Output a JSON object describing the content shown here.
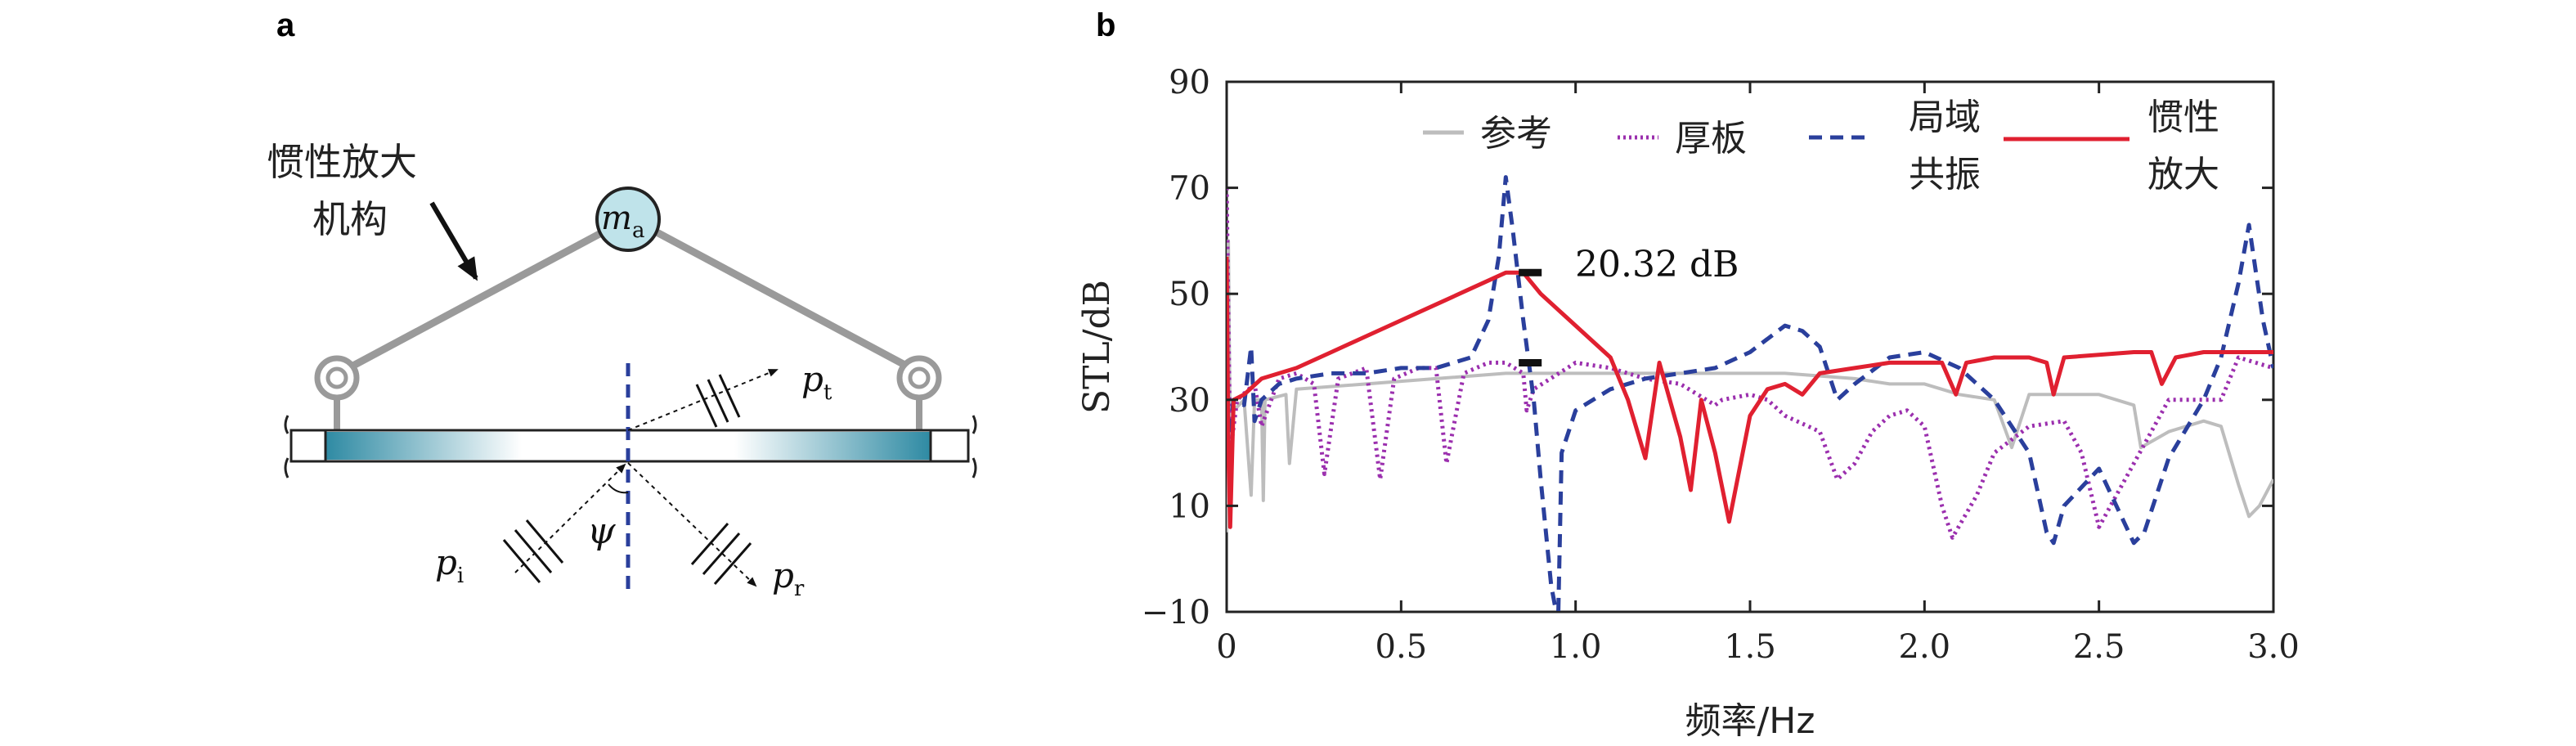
{
  "panels": {
    "a": "a",
    "b": "b"
  },
  "schematic": {
    "mechanism_label_line1": "惯性放大",
    "mechanism_label_line2": "机构",
    "mass_label": "m",
    "mass_sub": "a",
    "p_t": "p",
    "p_t_sub": "t",
    "p_i": "p",
    "p_i_sub": "i",
    "p_r": "p",
    "p_r_sub": "r",
    "psi": "ψ",
    "colors": {
      "plate": "#2e8aa3",
      "mass": "#bfe3ea",
      "bar": "#9a9a9a",
      "dashed": "#2a3f9c"
    }
  },
  "chart_data": {
    "type": "line",
    "xlabel": "频率/Hz",
    "ylabel": "STL/dB",
    "xlim": [
      0,
      3.0
    ],
    "ylim": [
      -10,
      90
    ],
    "xticks": [
      "0",
      "0.5",
      "1.0",
      "1.5",
      "2.0",
      "2.5",
      "3.0"
    ],
    "yticks": [
      "−10",
      "10",
      "30",
      "50",
      "70",
      "90"
    ],
    "xtick_values": [
      0,
      0.5,
      1.0,
      1.5,
      2.0,
      2.5,
      3.0
    ],
    "ytick_values": [
      -10,
      10,
      30,
      50,
      70,
      90
    ],
    "grid": false,
    "legend": {
      "placement": "top",
      "entries": [
        {
          "key": "ref",
          "line1": "参考",
          "line2": ""
        },
        {
          "key": "thick",
          "line1": "厚板",
          "line2": ""
        },
        {
          "key": "local",
          "line1": "局域",
          "line2": "共振"
        },
        {
          "key": "inertial",
          "line1": "惯性",
          "line2": "放大"
        }
      ]
    },
    "annotation": {
      "text": "20.32 dB",
      "x": 0.87,
      "y_top": 54,
      "y_bottom": 37
    },
    "series": [
      {
        "key": "ref",
        "color": "#bdbdbd",
        "dash": "solid",
        "points": [
          [
            0,
            5
          ],
          [
            0.005,
            60
          ],
          [
            0.01,
            22
          ],
          [
            0.02,
            28
          ],
          [
            0.05,
            30
          ],
          [
            0.07,
            12
          ],
          [
            0.08,
            30
          ],
          [
            0.1,
            30
          ],
          [
            0.105,
            11
          ],
          [
            0.11,
            30
          ],
          [
            0.17,
            31
          ],
          [
            0.18,
            18
          ],
          [
            0.2,
            32
          ],
          [
            0.4,
            33
          ],
          [
            0.6,
            34
          ],
          [
            0.8,
            35
          ],
          [
            1.0,
            35
          ],
          [
            1.2,
            35
          ],
          [
            1.4,
            35
          ],
          [
            1.6,
            35
          ],
          [
            1.8,
            34
          ],
          [
            1.9,
            33
          ],
          [
            2.0,
            33
          ],
          [
            2.1,
            31
          ],
          [
            2.2,
            30
          ],
          [
            2.25,
            21
          ],
          [
            2.3,
            31
          ],
          [
            2.4,
            31
          ],
          [
            2.5,
            31
          ],
          [
            2.6,
            29
          ],
          [
            2.62,
            21
          ],
          [
            2.7,
            24
          ],
          [
            2.8,
            26
          ],
          [
            2.85,
            25
          ],
          [
            2.9,
            14
          ],
          [
            2.93,
            8
          ],
          [
            2.96,
            10
          ],
          [
            3.0,
            15
          ]
        ]
      },
      {
        "key": "thick",
        "color": "#9b2fae",
        "dash": "dotted",
        "points": [
          [
            0,
            70
          ],
          [
            0.01,
            20
          ],
          [
            0.03,
            30
          ],
          [
            0.08,
            33
          ],
          [
            0.1,
            25
          ],
          [
            0.15,
            34
          ],
          [
            0.2,
            35
          ],
          [
            0.25,
            33
          ],
          [
            0.28,
            16
          ],
          [
            0.32,
            34
          ],
          [
            0.4,
            36
          ],
          [
            0.44,
            15
          ],
          [
            0.48,
            34
          ],
          [
            0.55,
            36
          ],
          [
            0.6,
            36
          ],
          [
            0.63,
            18
          ],
          [
            0.68,
            35
          ],
          [
            0.75,
            37
          ],
          [
            0.8,
            37
          ],
          [
            0.85,
            35
          ],
          [
            0.86,
            28
          ],
          [
            0.88,
            32
          ],
          [
            1.0,
            37
          ],
          [
            1.1,
            36
          ],
          [
            1.2,
            34
          ],
          [
            1.3,
            33
          ],
          [
            1.4,
            29
          ],
          [
            1.42,
            30
          ],
          [
            1.5,
            31
          ],
          [
            1.55,
            30
          ],
          [
            1.6,
            27
          ],
          [
            1.7,
            24
          ],
          [
            1.75,
            15
          ],
          [
            1.8,
            18
          ],
          [
            1.85,
            24
          ],
          [
            1.9,
            27
          ],
          [
            1.95,
            28
          ],
          [
            2.0,
            25
          ],
          [
            2.05,
            10
          ],
          [
            2.08,
            4
          ],
          [
            2.15,
            12
          ],
          [
            2.2,
            20
          ],
          [
            2.3,
            25
          ],
          [
            2.4,
            26
          ],
          [
            2.45,
            20
          ],
          [
            2.5,
            6
          ],
          [
            2.55,
            12
          ],
          [
            2.7,
            30
          ],
          [
            2.8,
            30
          ],
          [
            2.85,
            30
          ],
          [
            2.9,
            38
          ],
          [
            3.0,
            36
          ]
        ]
      },
      {
        "key": "local",
        "color": "#2a3f9c",
        "dash": "dashed",
        "points": [
          [
            0,
            20
          ],
          [
            0.02,
            30
          ],
          [
            0.05,
            29
          ],
          [
            0.07,
            40
          ],
          [
            0.08,
            26
          ],
          [
            0.1,
            30
          ],
          [
            0.15,
            33
          ],
          [
            0.2,
            34
          ],
          [
            0.3,
            35
          ],
          [
            0.4,
            35
          ],
          [
            0.5,
            36
          ],
          [
            0.6,
            36
          ],
          [
            0.7,
            38
          ],
          [
            0.75,
            45
          ],
          [
            0.78,
            57
          ],
          [
            0.8,
            72
          ],
          [
            0.82,
            62
          ],
          [
            0.85,
            45
          ],
          [
            0.88,
            30
          ],
          [
            0.9,
            15
          ],
          [
            0.93,
            -5
          ],
          [
            0.95,
            -12
          ],
          [
            0.96,
            20
          ],
          [
            1.0,
            28
          ],
          [
            1.1,
            32
          ],
          [
            1.2,
            34
          ],
          [
            1.3,
            35
          ],
          [
            1.4,
            36
          ],
          [
            1.5,
            39
          ],
          [
            1.6,
            44
          ],
          [
            1.65,
            43
          ],
          [
            1.7,
            40
          ],
          [
            1.75,
            30
          ],
          [
            1.8,
            33
          ],
          [
            1.9,
            38
          ],
          [
            2.0,
            39
          ],
          [
            2.1,
            36
          ],
          [
            2.2,
            30
          ],
          [
            2.3,
            20
          ],
          [
            2.35,
            5
          ],
          [
            2.37,
            3
          ],
          [
            2.4,
            10
          ],
          [
            2.5,
            17
          ],
          [
            2.55,
            10
          ],
          [
            2.6,
            3
          ],
          [
            2.63,
            5
          ],
          [
            2.7,
            19
          ],
          [
            2.8,
            30
          ],
          [
            2.85,
            38
          ],
          [
            2.9,
            52
          ],
          [
            2.93,
            63
          ],
          [
            2.97,
            45
          ],
          [
            3.0,
            36
          ]
        ]
      },
      {
        "key": "inertial",
        "color": "#e02030",
        "dash": "solid",
        "points": [
          [
            0,
            57
          ],
          [
            0.005,
            20
          ],
          [
            0.01,
            6
          ],
          [
            0.02,
            30
          ],
          [
            0.05,
            31
          ],
          [
            0.1,
            34
          ],
          [
            0.2,
            36
          ],
          [
            0.3,
            39
          ],
          [
            0.4,
            42
          ],
          [
            0.5,
            45
          ],
          [
            0.6,
            48
          ],
          [
            0.7,
            51
          ],
          [
            0.8,
            54
          ],
          [
            0.85,
            54
          ],
          [
            0.9,
            50
          ],
          [
            1.0,
            44
          ],
          [
            1.1,
            38
          ],
          [
            1.15,
            30
          ],
          [
            1.2,
            19
          ],
          [
            1.24,
            37
          ],
          [
            1.3,
            23
          ],
          [
            1.33,
            13
          ],
          [
            1.36,
            30
          ],
          [
            1.4,
            20
          ],
          [
            1.44,
            7
          ],
          [
            1.5,
            27
          ],
          [
            1.55,
            32
          ],
          [
            1.6,
            33
          ],
          [
            1.65,
            31
          ],
          [
            1.7,
            35
          ],
          [
            1.8,
            36
          ],
          [
            1.9,
            37
          ],
          [
            2.0,
            37
          ],
          [
            2.05,
            37
          ],
          [
            2.09,
            31
          ],
          [
            2.12,
            37
          ],
          [
            2.2,
            38
          ],
          [
            2.3,
            38
          ],
          [
            2.35,
            37
          ],
          [
            2.37,
            31
          ],
          [
            2.4,
            38
          ],
          [
            2.6,
            39
          ],
          [
            2.65,
            39
          ],
          [
            2.68,
            33
          ],
          [
            2.72,
            38
          ],
          [
            2.8,
            39
          ],
          [
            2.9,
            39
          ],
          [
            3.0,
            39
          ]
        ]
      }
    ]
  }
}
